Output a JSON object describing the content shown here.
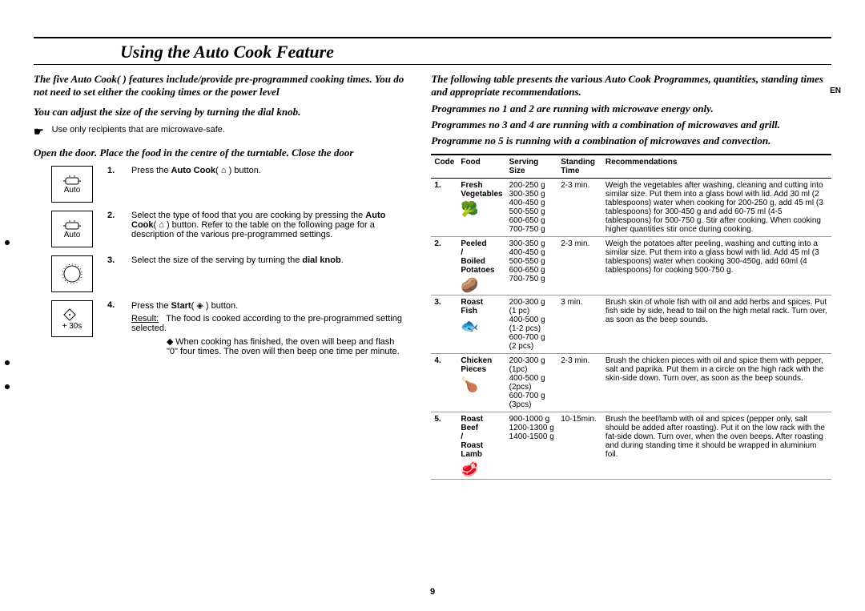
{
  "page_number": "9",
  "lang_badge": "EN",
  "title": "Using the Auto Cook Feature",
  "left": {
    "intro1": "The five Auto Cook(      ) features include/provide pre-programmed cooking times. You do not need to set either the cooking times or the power level",
    "intro2": "You can adjust the size of the serving by turning the dial knob.",
    "bullet_note": "Use only recipients that are microwave-safe.",
    "intro3": "Open the door. Place the food in the centre of the turntable. Close the door",
    "panels": {
      "p1": "Auto",
      "p2": "Auto",
      "p4": "+ 30s"
    },
    "steps": {
      "s1_num": "1.",
      "s1": "Press the Auto Cook(      ) button.",
      "s2_num": "2.",
      "s2": "Select the type of food that you are cooking by pressing the Auto Cook(      ) button. Refer to the table on the following page for a description of the various pre-programmed settings.",
      "s3_num": "3.",
      "s3": "Select the size of the serving by turning the dial knob.",
      "s4_num": "4.",
      "s4a": "Press the Start(     ) button.",
      "s4_result_label": "Result:",
      "s4_result": "The food is cooked according to the pre-programmed setting selected.",
      "s4_sub": "When cooking has finished, the oven will beep and flash \"0\" four times. The oven will then beep one time per minute."
    }
  },
  "right": {
    "intro1": "The following table presents the various Auto Cook Programmes, quantities, standing times and appropriate recommendations.",
    "intro2": "Programmes no 1 and 2 are running with microwave energy only.",
    "intro3": "Programmes no 3 and 4 are running with a combination of microwaves and grill.",
    "intro4": "Programme no 5 is running with a combination of microwaves and convection.",
    "headers": {
      "code": "Code",
      "food": "Food",
      "size": "Serving Size",
      "time": "Standing Time",
      "rec": "Recommendations"
    },
    "rows": [
      {
        "code": "1.",
        "food": "Fresh Vegetables",
        "icon": "🥦",
        "sizes": "200-250 g\n300-350 g\n400-450 g\n500-550 g\n600-650 g\n700-750 g",
        "time": "2-3 min.",
        "rec": "Weigh the vegetables after washing, cleaning and cutting into similar size. Put them into a glass bowl with lid. Add 30 ml (2 tablespoons) water when cooking for 200-250 g, add 45 ml (3 tablespoons) for 300-450 g and add 60-75 ml (4-5 tablespoons) for 500-750 g. Stir after cooking. When cooking higher quantities stir once during cooking."
      },
      {
        "code": "2.",
        "food": "Peeled / Boiled Potatoes",
        "icon": "🥔",
        "sizes": "300-350 g\n400-450 g\n500-550 g\n600-650 g\n700-750 g",
        "time": "2-3 min.",
        "rec": "Weigh the potatoes after peeling, washing and cutting into a similar size. Put them into a glass bowl with lid. Add 45 ml (3 tablespoons) water when cooking 300-450g, add 60ml (4 tablespoons) for cooking 500-750 g."
      },
      {
        "code": "3.",
        "food": "Roast Fish",
        "icon": "🐟",
        "sizes": "200-300 g\n(1 pc)\n400-500 g\n(1-2 pcs)\n600-700 g\n(2 pcs)",
        "time": "3 min.",
        "rec": "Brush skin of whole fish with oil and add herbs and spices. Put fish side by side, head to tail on the high metal rack. Turn over, as soon as the beep sounds."
      },
      {
        "code": "4.",
        "food": "Chicken Pieces",
        "icon": "🍗",
        "sizes": "200-300 g\n(1pc)\n400-500 g\n(2pcs)\n600-700 g\n(3pcs)",
        "time": "2-3 min.",
        "rec": "Brush the chicken pieces with oil and spice them with pepper, salt and paprika. Put them in a circle on the high rack with the skin-side down. Turn over, as soon as the beep sounds."
      },
      {
        "code": "5.",
        "food": "Roast Beef / Roast Lamb",
        "icon": "🥩",
        "sizes": "900-1000 g\n1200-1300 g\n1400-1500 g",
        "time": "10-15min.",
        "rec": "Brush the beef/lamb with oil and spices (pepper only, salt should be added after roasting). Put it on the low rack with the fat-side down. Turn over, when the oven beeps. After roasting and during standing time it should be wrapped in aluminium foil."
      }
    ]
  }
}
